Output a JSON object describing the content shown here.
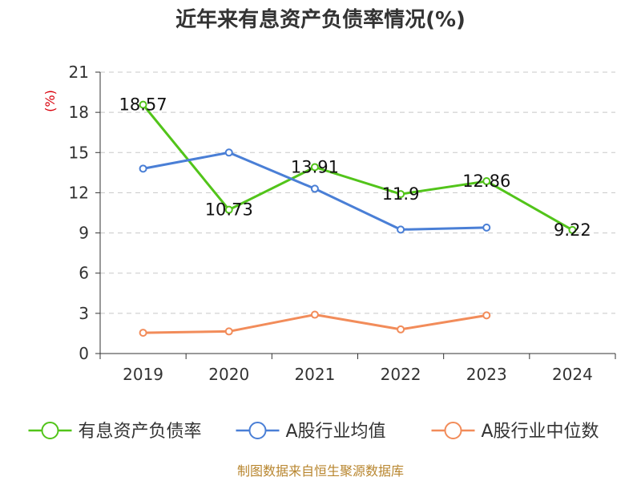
{
  "chart_data": {
    "type": "line",
    "title": "近年来有息资产负债率情况(%)",
    "ylabel": "(%)",
    "categories": [
      "2019",
      "2020",
      "2021",
      "2022",
      "2023",
      "2024"
    ],
    "ylim": [
      0,
      21
    ],
    "yticks": [
      0,
      3,
      6,
      9,
      12,
      15,
      18,
      21
    ],
    "grid": true,
    "legend_position": "bottom",
    "series": [
      {
        "name": "有息资产负债率",
        "color": "#52c41a",
        "values": [
          18.57,
          10.73,
          13.91,
          11.9,
          12.86,
          9.22
        ],
        "labels": [
          "18.57",
          "10.73",
          "13.91",
          "11.9",
          "12.86",
          "9.22"
        ]
      },
      {
        "name": "A股行业均值",
        "color": "#4a7fd6",
        "values": [
          13.8,
          15.0,
          12.3,
          9.25,
          9.4,
          null
        ]
      },
      {
        "name": "A股行业中位数",
        "color": "#f28c5a",
        "values": [
          1.55,
          1.65,
          2.9,
          1.8,
          2.85,
          null
        ]
      }
    ]
  },
  "source": "制图数据来自恒生聚源数据库"
}
